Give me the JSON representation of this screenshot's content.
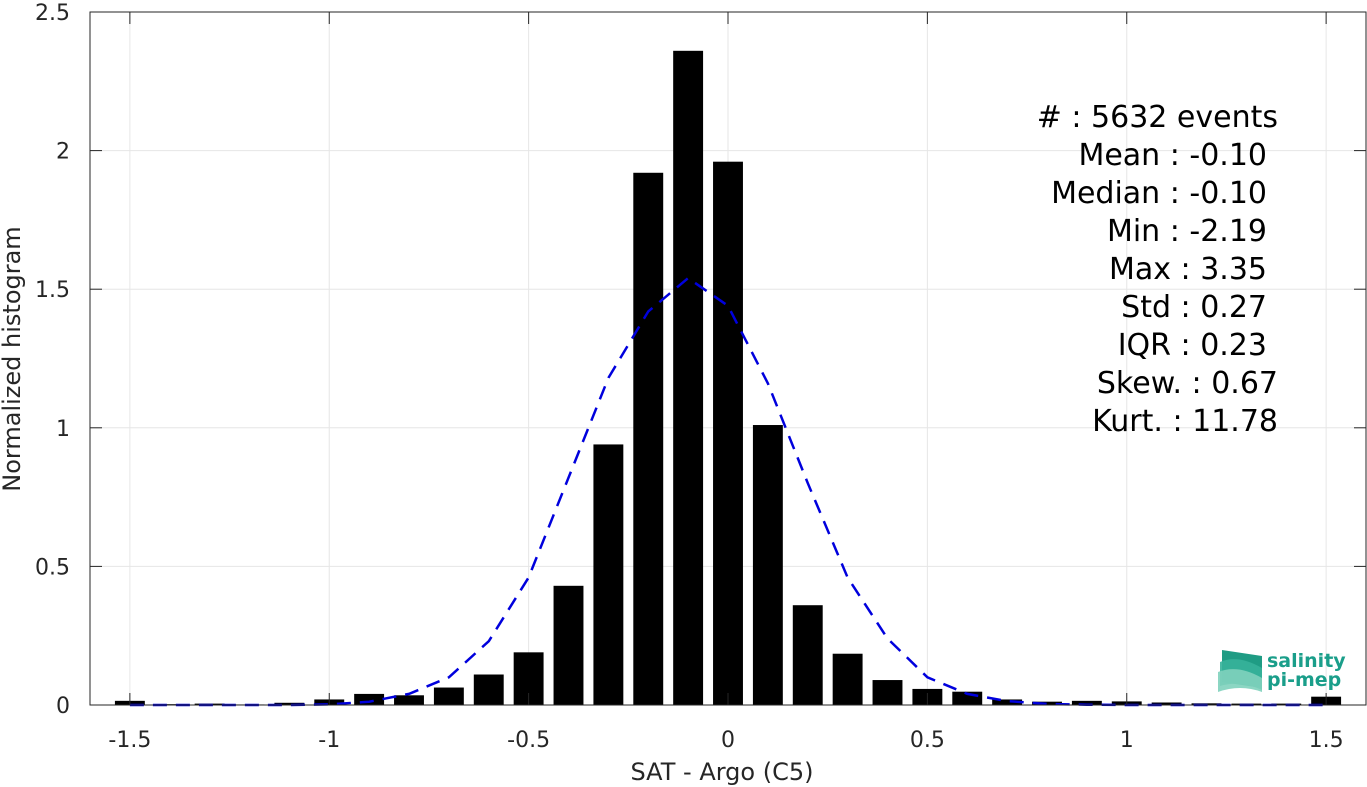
{
  "chart_data": {
    "type": "bar",
    "xlabel": "SAT - Argo (C5)",
    "ylabel": "Normalized histogram",
    "xlim": [
      -1.6,
      1.6
    ],
    "ylim": [
      0,
      2.5
    ],
    "xticks": [
      -1.5,
      -1,
      -0.5,
      0,
      0.5,
      1,
      1.5
    ],
    "xtick_labels": [
      "-1.5",
      "-1",
      "-0.5",
      "0",
      "0.5",
      "1",
      "1.5"
    ],
    "yticks": [
      0,
      0.5,
      1,
      1.5,
      2,
      2.5
    ],
    "ytick_labels": [
      "0",
      "0.5",
      "1",
      "1.5",
      "2",
      "2.5"
    ],
    "grid": true,
    "bar_color": "#000000",
    "bar_width": 0.075,
    "bars": {
      "x": [
        -1.5,
        -1.4,
        -1.3,
        -1.2,
        -1.1,
        -1.0,
        -0.9,
        -0.8,
        -0.7,
        -0.6,
        -0.5,
        -0.4,
        -0.3,
        -0.2,
        -0.1,
        0.0,
        0.1,
        0.2,
        0.3,
        0.4,
        0.5,
        0.6,
        0.7,
        0.8,
        0.9,
        1.0,
        1.1,
        1.2,
        1.3,
        1.4,
        1.5
      ],
      "values": [
        0.015,
        0.003,
        0.005,
        0.002,
        0.008,
        0.02,
        0.04,
        0.035,
        0.063,
        0.11,
        0.19,
        0.43,
        0.94,
        1.92,
        2.36,
        1.96,
        1.01,
        0.36,
        0.185,
        0.09,
        0.058,
        0.048,
        0.02,
        0.012,
        0.015,
        0.013,
        0.009,
        0.006,
        0.005,
        0.005,
        0.03
      ]
    },
    "fit": {
      "style": "dashed",
      "color": "#0000dd",
      "x": [
        -1.5,
        -1.4,
        -1.3,
        -1.2,
        -1.1,
        -1.0,
        -0.9,
        -0.8,
        -0.7,
        -0.6,
        -0.5,
        -0.4,
        -0.3,
        -0.2,
        -0.1,
        0.0,
        0.1,
        0.2,
        0.3,
        0.4,
        0.5,
        0.6,
        0.7,
        0.8,
        0.9,
        1.0,
        1.1,
        1.2,
        1.3,
        1.4,
        1.5
      ],
      "values": [
        0.0,
        0.0,
        0.0,
        0.0,
        0.0,
        0.002,
        0.012,
        0.04,
        0.1,
        0.23,
        0.46,
        0.82,
        1.18,
        1.42,
        1.54,
        1.44,
        1.16,
        0.8,
        0.46,
        0.24,
        0.1,
        0.04,
        0.014,
        0.004,
        0.001,
        0.0,
        0.0,
        0.0,
        0.0,
        0.0,
        0.0
      ]
    },
    "annotations": [
      "#  : 5632 events",
      "Mean : -0.10",
      "Median : -0.10",
      "Min : -2.19",
      "Max : 3.35",
      "Std : 0.27",
      "IQR : 0.23",
      "Skew. : 0.67",
      "Kurt. : 11.78"
    ]
  },
  "logo": {
    "line1": "salinity",
    "line2": "pi-mep",
    "color": "#1a9e8a"
  }
}
